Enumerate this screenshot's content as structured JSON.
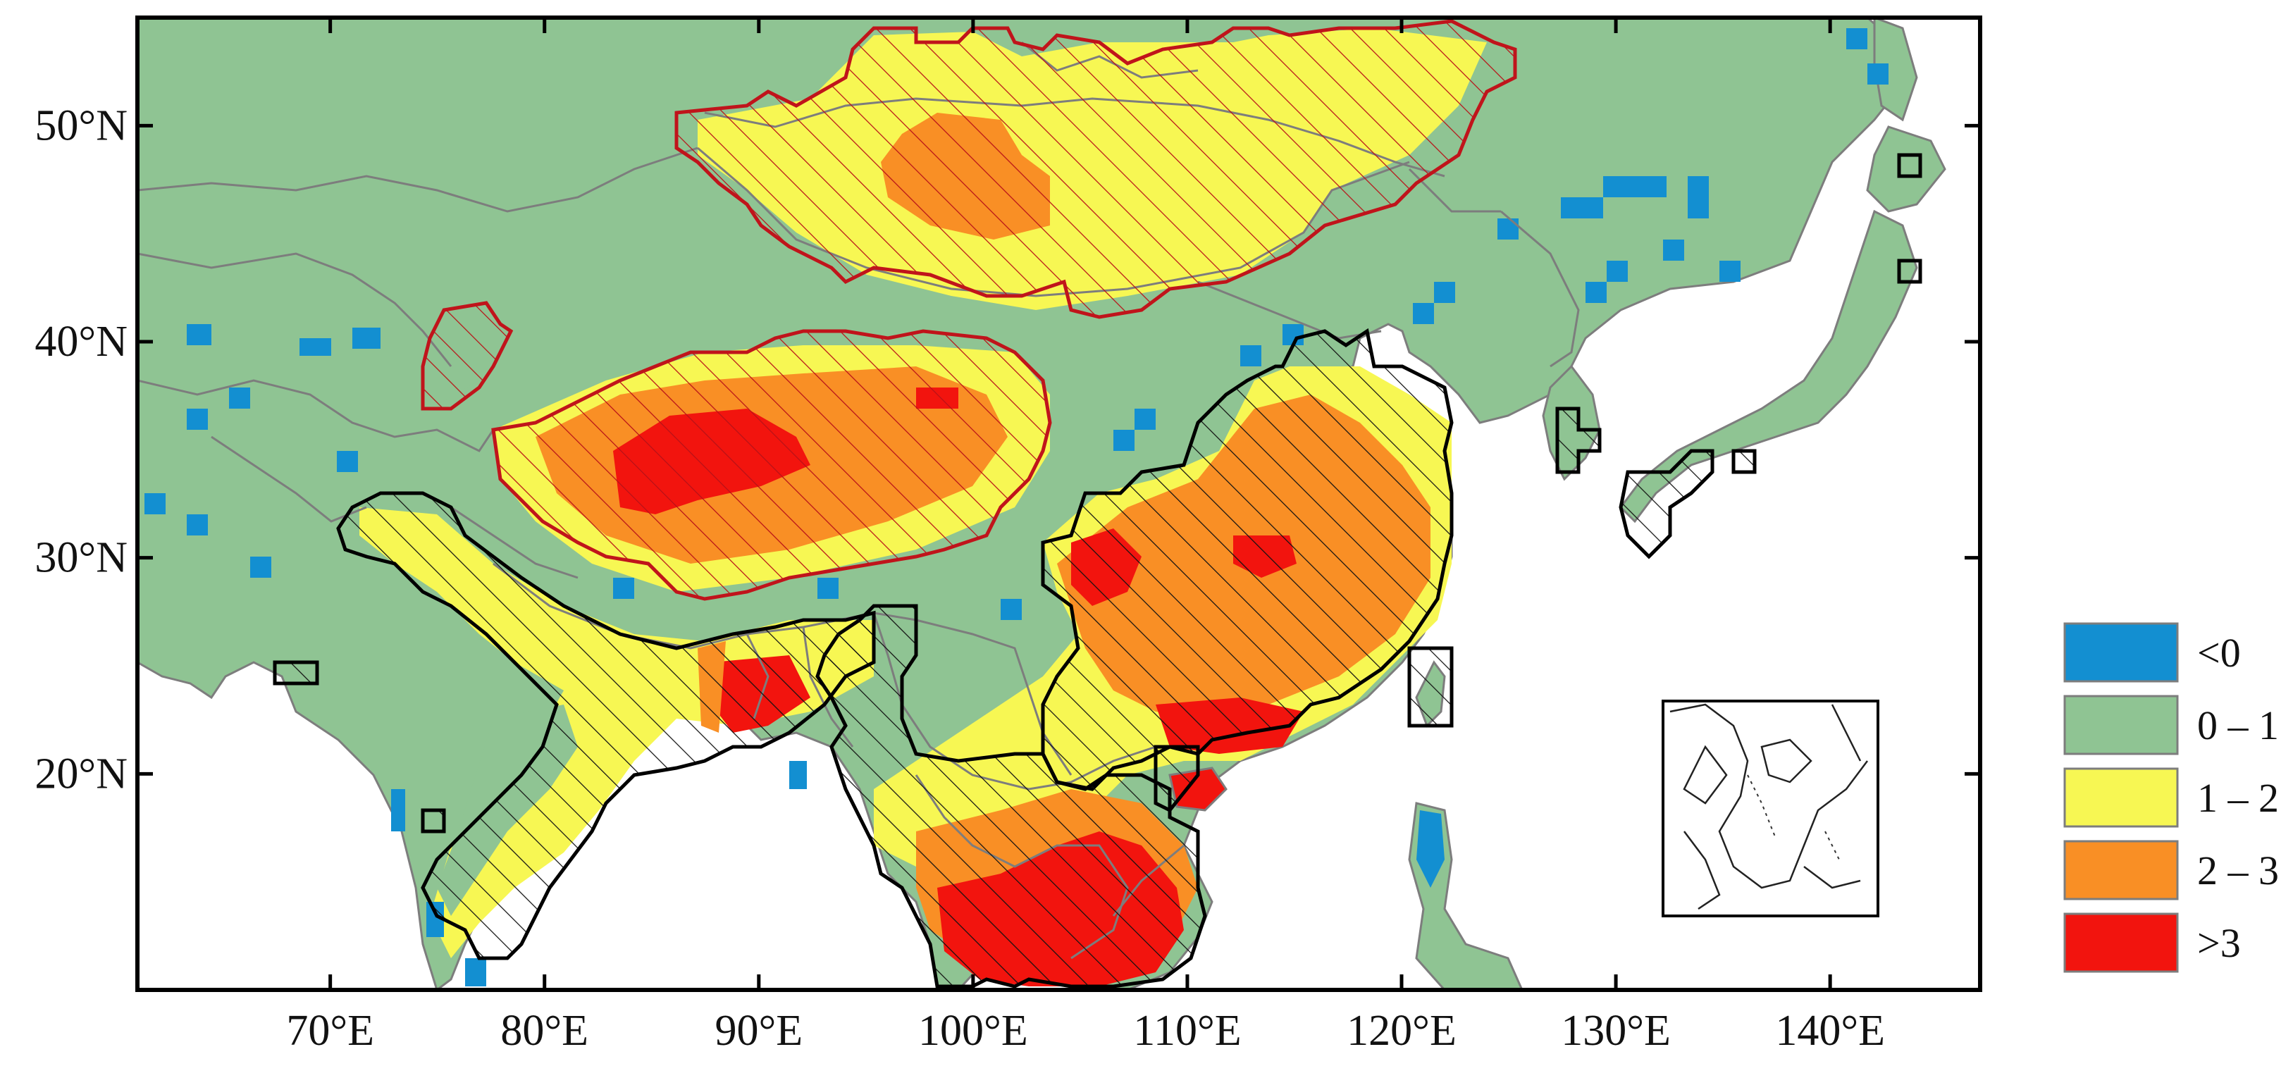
{
  "map": {
    "extent": {
      "lon": [
        61,
        147
      ],
      "lat": [
        10,
        55
      ]
    },
    "x_ticks": [
      {
        "lon": 70,
        "label": "70°E"
      },
      {
        "lon": 80,
        "label": "80°E"
      },
      {
        "lon": 90,
        "label": "90°E"
      },
      {
        "lon": 100,
        "label": "100°E"
      },
      {
        "lon": 110,
        "label": "110°E"
      },
      {
        "lon": 120,
        "label": "120°E"
      },
      {
        "lon": 130,
        "label": "130°E"
      },
      {
        "lon": 140,
        "label": "140°E"
      }
    ],
    "y_ticks": [
      {
        "lat": 20,
        "label": "20°N"
      },
      {
        "lat": 30,
        "label": "30°N"
      },
      {
        "lat": 40,
        "label": "40°N"
      },
      {
        "lat": 50,
        "label": "50°N"
      }
    ],
    "colors": {
      "ocean": "#ffffff",
      "land": "#8fc493",
      "border": "#7d7d7d",
      "frame": "#000000",
      "hatch_red": "#c0141b",
      "hatch_black": "#000000"
    }
  },
  "legend": [
    {
      "label": "<0",
      "color": "#138fd1"
    },
    {
      "label": "0 – 1",
      "color": "#8fc493"
    },
    {
      "label": "1 – 2",
      "color": "#f7f753"
    },
    {
      "label": "2 – 3",
      "color": "#f98f25"
    },
    {
      "label": ">3",
      "color": "#f2140e"
    }
  ]
}
